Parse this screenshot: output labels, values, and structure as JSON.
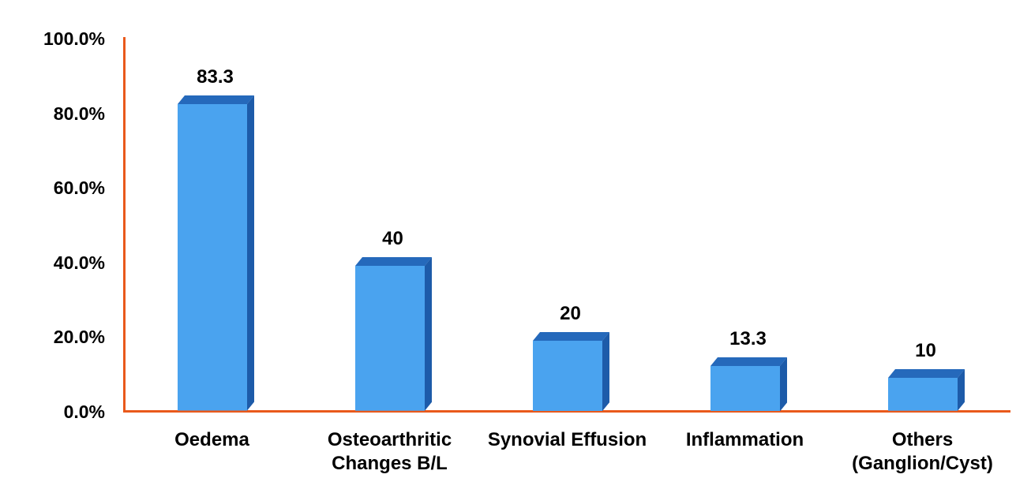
{
  "chart_data": {
    "type": "bar",
    "title": "",
    "xlabel": "",
    "ylabel": "",
    "categories": [
      "Oedema",
      "Osteoarthritic Changes B/L",
      "Synovial Effusion",
      "Inflammation",
      "Others (Ganglion/Cyst)"
    ],
    "category_lines": [
      [
        "Oedema"
      ],
      [
        "Osteoarthritic",
        "Changes B/L"
      ],
      [
        "Synovial Effusion"
      ],
      [
        "Inflammation"
      ],
      [
        "Others",
        "(Ganglion/Cyst)"
      ]
    ],
    "values": [
      83.3,
      40,
      20,
      13.3,
      10
    ],
    "data_labels": [
      "83.3",
      "40",
      "20",
      "13.3",
      "10"
    ],
    "ylim": [
      0,
      100
    ],
    "y_ticks": [
      "0.0%",
      "20.0%",
      "40.0%",
      "60.0%",
      "80.0%",
      "100.0%"
    ],
    "grid": false,
    "legend": false,
    "bar_style": "3d-column",
    "colors": {
      "bar_front": "#4AA3EF",
      "bar_top": "#2569BB",
      "bar_side": "#1D5BA9",
      "axis": "#E9591B",
      "text": "#000000",
      "background": "#FFFFFF"
    }
  }
}
